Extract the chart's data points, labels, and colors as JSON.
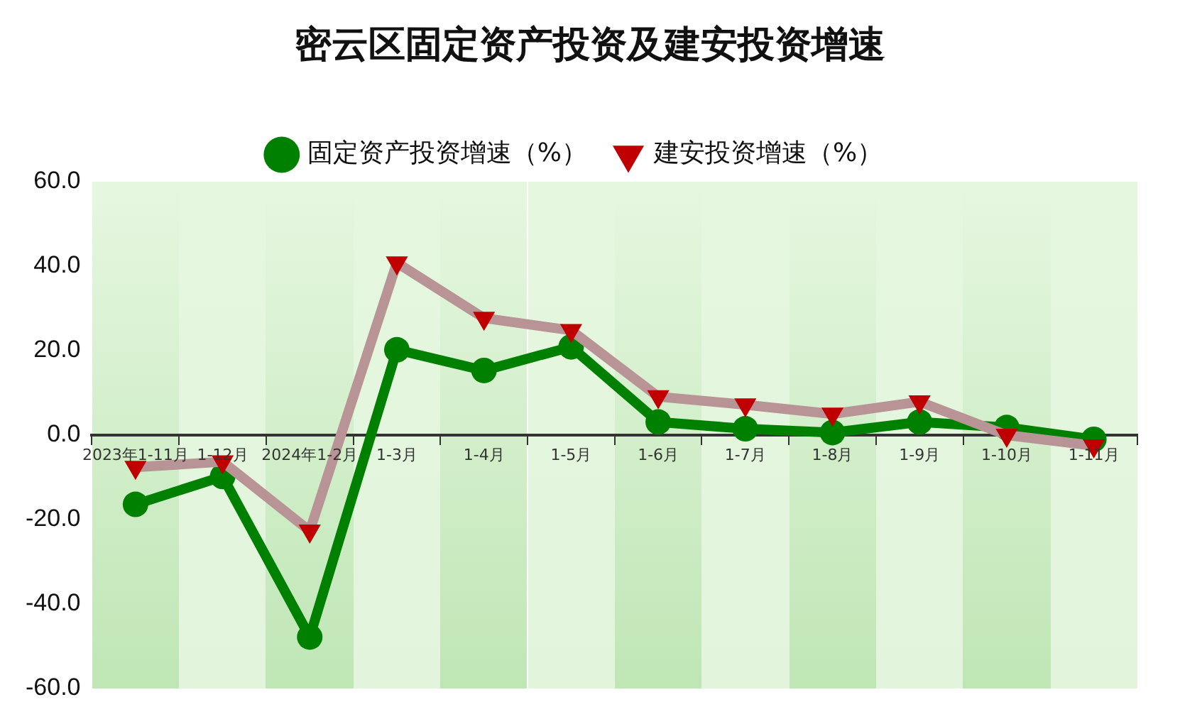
{
  "chart_data": {
    "type": "line",
    "title": "密云区固定资产投资及建安投资增速",
    "categories": [
      "2023年1-11月",
      "1-12月",
      "2024年1-2月",
      "1-3月",
      "1-4月",
      "1-5月",
      "1-6月",
      "1-7月",
      "1-8月",
      "1-9月",
      "1-10月",
      "1-11月"
    ],
    "series": [
      {
        "name": "固定资产投资增速（%）",
        "color": "#008000",
        "marker": "circle",
        "values": [
          -16.4,
          -9.8,
          -47.8,
          20.2,
          15.3,
          20.9,
          3.1,
          1.5,
          0.6,
          3.1,
          1.8,
          -1.0
        ]
      },
      {
        "name": "建安投资增速（%）",
        "color": "#b89496",
        "marker": "triangle",
        "values": [
          -7.6,
          -6.3,
          -22.7,
          40.8,
          27.7,
          24.8,
          9.1,
          7.2,
          5.0,
          7.9,
          0.0,
          -2.5
        ]
      }
    ],
    "ylim": [
      -60,
      60
    ],
    "yticks": [
      {
        "value": -60,
        "label": "-60.0"
      },
      {
        "value": -40,
        "label": "-40.0"
      },
      {
        "value": -20,
        "label": "-20.0"
      },
      {
        "value": 0,
        "label": "0.0"
      },
      {
        "value": 20,
        "label": "20.0"
      },
      {
        "value": 40,
        "label": "40.0"
      },
      {
        "value": 60,
        "label": "60.0"
      }
    ],
    "legend": "top",
    "grid": false,
    "line_style": "solid"
  }
}
